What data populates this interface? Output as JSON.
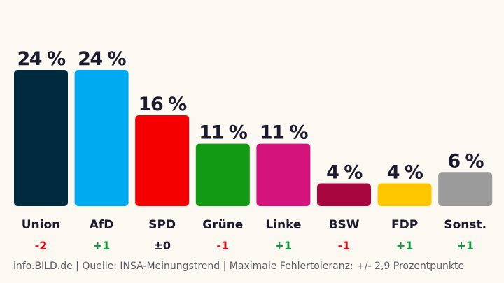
{
  "chart_data": {
    "type": "bar",
    "title": "",
    "xlabel": "",
    "ylabel": "",
    "ylim": [
      0,
      24
    ],
    "grid": false,
    "legend": "none",
    "categories": [
      "Union",
      "AfD",
      "SPD",
      "Grüne",
      "Linke",
      "BSW",
      "FDP",
      "Sonst."
    ],
    "values": [
      24,
      24,
      16,
      11,
      11,
      4,
      4,
      6
    ],
    "value_labels": [
      "24 %",
      "24 %",
      "16 %",
      "11 %",
      "11 %",
      "4 %",
      "4 %",
      "6 %"
    ],
    "changes": [
      "-2",
      "+1",
      "±0",
      "-1",
      "+1",
      "-1",
      "+1",
      "+1"
    ],
    "bar_colors": [
      "#002b3e",
      "#00aaf0",
      "#f50000",
      "#129a14",
      "#d4137c",
      "#a8063f",
      "#fec700",
      "#9b9b9b"
    ],
    "change_colors": {
      "negative": "#e30613",
      "positive": "#0a9a3a",
      "neutral": "#1c1a2e"
    }
  },
  "source": "info.BILD.de | Quelle: INSA-Meinungstrend | Maximale Fehlertoleranz: +/- 2,9 Prozentpunkte"
}
